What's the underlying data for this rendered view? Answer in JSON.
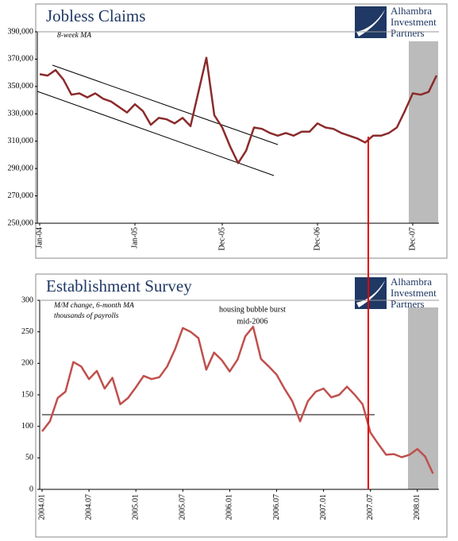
{
  "chart_data": [
    {
      "type": "line",
      "title": "Jobless Claims",
      "subtitle": "8-week MA",
      "logo": [
        "Alhambra",
        "Investment",
        "Partners"
      ],
      "categories": [
        "Jan-04",
        null,
        null,
        null,
        null,
        null,
        null,
        null,
        null,
        null,
        null,
        null,
        "Jan-05",
        null,
        null,
        null,
        null,
        null,
        null,
        null,
        null,
        null,
        null,
        "Dec-05",
        null,
        null,
        null,
        null,
        null,
        null,
        null,
        null,
        null,
        null,
        null,
        "Dec-06",
        null,
        null,
        null,
        null,
        null,
        null,
        null,
        null,
        null,
        null,
        null,
        "Dec-07",
        null,
        null,
        null
      ],
      "values": [
        359000,
        358000,
        362000,
        355000,
        344000,
        345000,
        342000,
        345000,
        341000,
        339000,
        335000,
        331000,
        337000,
        332000,
        322000,
        327000,
        326000,
        323000,
        327000,
        321000,
        346000,
        371000,
        329000,
        320000,
        306000,
        294000,
        303000,
        320000,
        319000,
        316000,
        314000,
        316000,
        314000,
        317000,
        317000,
        323000,
        320000,
        319000,
        316000,
        314000,
        312000,
        309000,
        314000,
        314000,
        316000,
        320000,
        332000,
        345000,
        344000,
        346000,
        358000
      ],
      "color": "#8b2b2b",
      "ylim": [
        250000,
        390000
      ],
      "yticks": [
        {
          "value": 250000,
          "label": "250,000"
        },
        {
          "value": 270000,
          "label": "270,000"
        },
        {
          "value": 290000,
          "label": "290,000"
        },
        {
          "value": 310000,
          "label": "310,000"
        },
        {
          "value": 330000,
          "label": "330,000"
        },
        {
          "value": 350000,
          "label": "350,000"
        },
        {
          "value": 370000,
          "label": "370,000"
        },
        {
          "value": 390000,
          "label": "390,000"
        }
      ]
    },
    {
      "type": "line",
      "title": "Establishment Survey",
      "subtitle": [
        "M/M change, 6-month MA",
        "thousands of payrolls"
      ],
      "annotation": [
        "housing bubble burst",
        "mid-2006"
      ],
      "logo": [
        "Alhambra",
        "Investment",
        "Partners"
      ],
      "categories": [
        "2004.01",
        null,
        null,
        null,
        null,
        null,
        "2004.07",
        null,
        null,
        null,
        null,
        null,
        "2005.01",
        null,
        null,
        null,
        null,
        null,
        "2005.07",
        null,
        null,
        null,
        null,
        null,
        "2006.01",
        null,
        null,
        null,
        null,
        null,
        "2006.07",
        null,
        null,
        null,
        null,
        null,
        "2007.01",
        null,
        null,
        null,
        null,
        null,
        "2007.07",
        null,
        null,
        null,
        null,
        null,
        "2008.01",
        null,
        null
      ],
      "values": [
        92,
        108,
        145,
        155,
        202,
        195,
        175,
        188,
        160,
        177,
        135,
        145,
        162,
        180,
        175,
        178,
        195,
        222,
        256,
        250,
        240,
        190,
        217,
        205,
        187,
        206,
        243,
        258,
        207,
        195,
        182,
        160,
        140,
        108,
        140,
        155,
        160,
        146,
        150,
        163,
        150,
        135,
        90,
        72,
        55,
        56,
        51,
        55,
        64,
        52,
        25
      ],
      "color": "#c0504d",
      "ylim": [
        0,
        300
      ],
      "yticks": [
        0,
        50,
        100,
        150,
        200,
        250,
        300
      ]
    }
  ]
}
